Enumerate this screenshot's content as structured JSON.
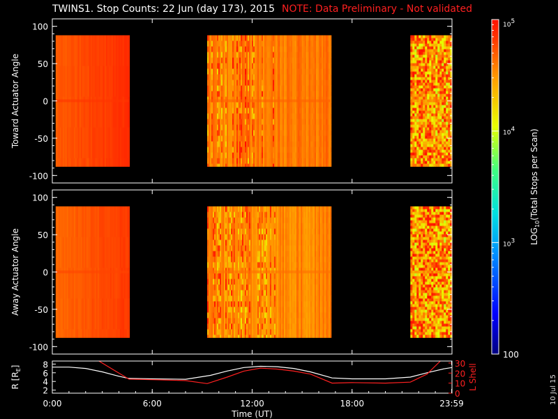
{
  "title": "TWINS1. Stop Counts: 22 Jun (day 173), 2015",
  "note": "NOTE: Data Preliminary - Not validated",
  "stamp": "10 Jul 15",
  "colors": {
    "background": "#000000",
    "note": "#ff2020",
    "r_line": "#ffffff",
    "lshell_line": "#ff2020"
  },
  "chart_data": [
    {
      "type": "heatmap",
      "panel": "top",
      "ylabel": "Toward Actuator Angle",
      "yticks": [
        100,
        50,
        0,
        -50,
        -100
      ],
      "ylim": [
        -110,
        110
      ],
      "data_extent": [
        -88,
        88
      ],
      "xlim_hours": [
        0,
        24
      ],
      "segments": [
        {
          "start_h": 0.2,
          "end_h": 4.6,
          "style": "smooth",
          "log_counts_mean": 4.75
        },
        {
          "start_h": 9.3,
          "end_h": 16.7,
          "style": "mixed",
          "log_counts_mean": 4.6
        },
        {
          "start_h": 21.5,
          "end_h": 24.0,
          "style": "noisy",
          "log_counts_mean": 4.5
        }
      ]
    },
    {
      "type": "heatmap",
      "panel": "middle",
      "ylabel": "Away Actuator Angle",
      "yticks": [
        100,
        50,
        0,
        -50,
        -100
      ],
      "ylim": [
        -110,
        110
      ],
      "data_extent": [
        -88,
        88
      ],
      "xlim_hours": [
        0,
        24
      ],
      "segments": [
        {
          "start_h": 0.2,
          "end_h": 4.6,
          "style": "smooth",
          "log_counts_mean": 4.7
        },
        {
          "start_h": 9.3,
          "end_h": 16.7,
          "style": "mixed",
          "log_counts_mean": 4.55
        },
        {
          "start_h": 21.5,
          "end_h": 24.0,
          "style": "noisy",
          "log_counts_mean": 4.5
        }
      ]
    },
    {
      "type": "line",
      "panel": "bottom",
      "ylabel": "R [RE]",
      "ylabel_text": "R [R",
      "ylabel_sub": "E",
      "ylabel_end": "]",
      "yticks": [
        2,
        4,
        6,
        8
      ],
      "ylim": [
        1.3,
        8.7
      ],
      "y2label": "L Shell",
      "y2ticks": [
        0,
        10,
        20,
        30
      ],
      "y2lim": [
        0,
        32
      ],
      "xlabel": "Time (UT)",
      "xticks": [
        "0:00",
        "6:00",
        "12:00",
        "18:00",
        "23:59"
      ],
      "xtick_hours": [
        0,
        6,
        12,
        18,
        23.98
      ],
      "series": [
        {
          "name": "R",
          "color": "#ffffff",
          "x": [
            0,
            1,
            2,
            3,
            4,
            4.6,
            6,
            8,
            9.5,
            10.5,
            11.5,
            12.5,
            13.5,
            14.5,
            15.5,
            16.8,
            18,
            20,
            21.5,
            22.5,
            23.5,
            24
          ],
          "y": [
            7.3,
            7.3,
            7.0,
            6.2,
            5.2,
            4.7,
            4.6,
            4.5,
            5.4,
            6.4,
            7.2,
            7.5,
            7.4,
            7.0,
            6.2,
            4.8,
            4.6,
            4.6,
            5.0,
            6.0,
            6.9,
            7.2
          ]
        },
        {
          "name": "L Shell",
          "color": "#ff2020",
          "x": [
            2.8,
            4.6,
            6,
            8,
            9.3,
            10.5,
            11.5,
            12.5,
            13.5,
            14.5,
            15.5,
            16.8,
            18,
            20,
            21.5,
            22.5,
            23.3
          ],
          "y": [
            32,
            14,
            13.5,
            12.5,
            9.5,
            16,
            22,
            25,
            24,
            22,
            19,
            10,
            10.5,
            10,
            11,
            19,
            32
          ]
        }
      ]
    },
    {
      "type": "colorbar",
      "label": "LOG10(Total Stops per Scan)",
      "label_prefix": "LOG",
      "label_sub": "10",
      "label_rest": "(Total Stops per Scan)",
      "scale": "log",
      "range": [
        100,
        100000
      ],
      "ticks": [
        "10",
        "10",
        "10",
        "100"
      ],
      "tick_exp": [
        "5",
        "4",
        "3",
        ""
      ]
    }
  ]
}
